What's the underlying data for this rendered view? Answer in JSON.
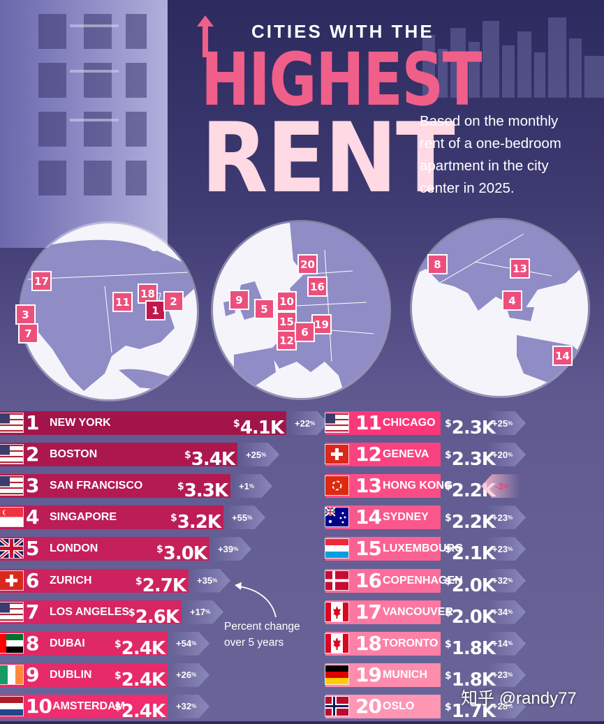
{
  "header": {
    "title_top": "CITIES WITH THE",
    "title_highest": "HIGHEST",
    "title_rent": "RENT",
    "subtitle": "Based on the monthly rent of a one-bedroom apartment in the city center in 2025."
  },
  "annotation": "Percent change over 5 years",
  "watermark": "知乎 @randy77",
  "colors": {
    "bar_top": "#a3154a",
    "bar_mid": "#e8306c",
    "bar_light": "#ff7aa3",
    "pin": "#ed4f7d"
  },
  "maps": {
    "north_america": [
      "17",
      "11",
      "18",
      "1",
      "2",
      "3",
      "7"
    ],
    "europe": [
      "20",
      "16",
      "9",
      "5",
      "10",
      "15",
      "19",
      "12",
      "6"
    ],
    "asia_pacific": [
      "8",
      "13",
      "4",
      "14"
    ]
  },
  "chart_data": {
    "type": "bar",
    "title": "CITIES WITH THE HIGHEST RENT",
    "subtitle": "Based on the monthly rent of a one-bedroom apartment in the city center in 2025.",
    "unit": "USD per month",
    "ylim": [
      0,
      4.1
    ],
    "rows": [
      {
        "rank": "1",
        "city": "NEW YORK",
        "value": 4.1,
        "value_label": "4.1K",
        "change": "+22",
        "flag": "us"
      },
      {
        "rank": "2",
        "city": "BOSTON",
        "value": 3.4,
        "value_label": "3.4K",
        "change": "+25",
        "flag": "us"
      },
      {
        "rank": "3",
        "city": "SAN FRANCISCO",
        "value": 3.3,
        "value_label": "3.3K",
        "change": "+1",
        "flag": "us"
      },
      {
        "rank": "4",
        "city": "SINGAPORE",
        "value": 3.2,
        "value_label": "3.2K",
        "change": "+55",
        "flag": "sg"
      },
      {
        "rank": "5",
        "city": "LONDON",
        "value": 3.0,
        "value_label": "3.0K",
        "change": "+39",
        "flag": "uk"
      },
      {
        "rank": "6",
        "city": "ZURICH",
        "value": 2.7,
        "value_label": "2.7K",
        "change": "+35",
        "flag": "ch"
      },
      {
        "rank": "7",
        "city": "LOS ANGELES",
        "value": 2.6,
        "value_label": "2.6K",
        "change": "+17",
        "flag": "us"
      },
      {
        "rank": "8",
        "city": "DUBAI",
        "value": 2.4,
        "value_label": "2.4K",
        "change": "+54",
        "flag": "ae"
      },
      {
        "rank": "9",
        "city": "DUBLIN",
        "value": 2.4,
        "value_label": "2.4K",
        "change": "+26",
        "flag": "ie"
      },
      {
        "rank": "10",
        "city": "AMSTERDAM",
        "value": 2.4,
        "value_label": "2.4K",
        "change": "+32",
        "flag": "nl"
      },
      {
        "rank": "11",
        "city": "CHICAGO",
        "value": 2.3,
        "value_label": "2.3K",
        "change": "+25",
        "flag": "us"
      },
      {
        "rank": "12",
        "city": "GENEVA",
        "value": 2.3,
        "value_label": "2.3K",
        "change": "+20",
        "flag": "ch"
      },
      {
        "rank": "13",
        "city": "HONG KONG",
        "value": 2.2,
        "value_label": "2.2K",
        "change": "-3",
        "flag": "hk"
      },
      {
        "rank": "14",
        "city": "SYDNEY",
        "value": 2.2,
        "value_label": "2.2K",
        "change": "+23",
        "flag": "au"
      },
      {
        "rank": "15",
        "city": "LUXEMBOURG",
        "value": 2.1,
        "value_label": "2.1K",
        "change": "+23",
        "flag": "lu"
      },
      {
        "rank": "16",
        "city": "COPENHAGEN",
        "value": 2.0,
        "value_label": "2.0K",
        "change": "+32",
        "flag": "dk"
      },
      {
        "rank": "17",
        "city": "VANCOUVER",
        "value": 2.0,
        "value_label": "2.0K",
        "change": "+34",
        "flag": "ca"
      },
      {
        "rank": "18",
        "city": "TORONTO",
        "value": 1.8,
        "value_label": "1.8K",
        "change": "+14",
        "flag": "ca"
      },
      {
        "rank": "19",
        "city": "MUNICH",
        "value": 1.8,
        "value_label": "1.8K",
        "change": "+23",
        "flag": "de"
      },
      {
        "rank": "20",
        "city": "OSLO",
        "value": 1.7,
        "value_label": "1.7K",
        "change": "+28",
        "flag": "no"
      }
    ]
  }
}
